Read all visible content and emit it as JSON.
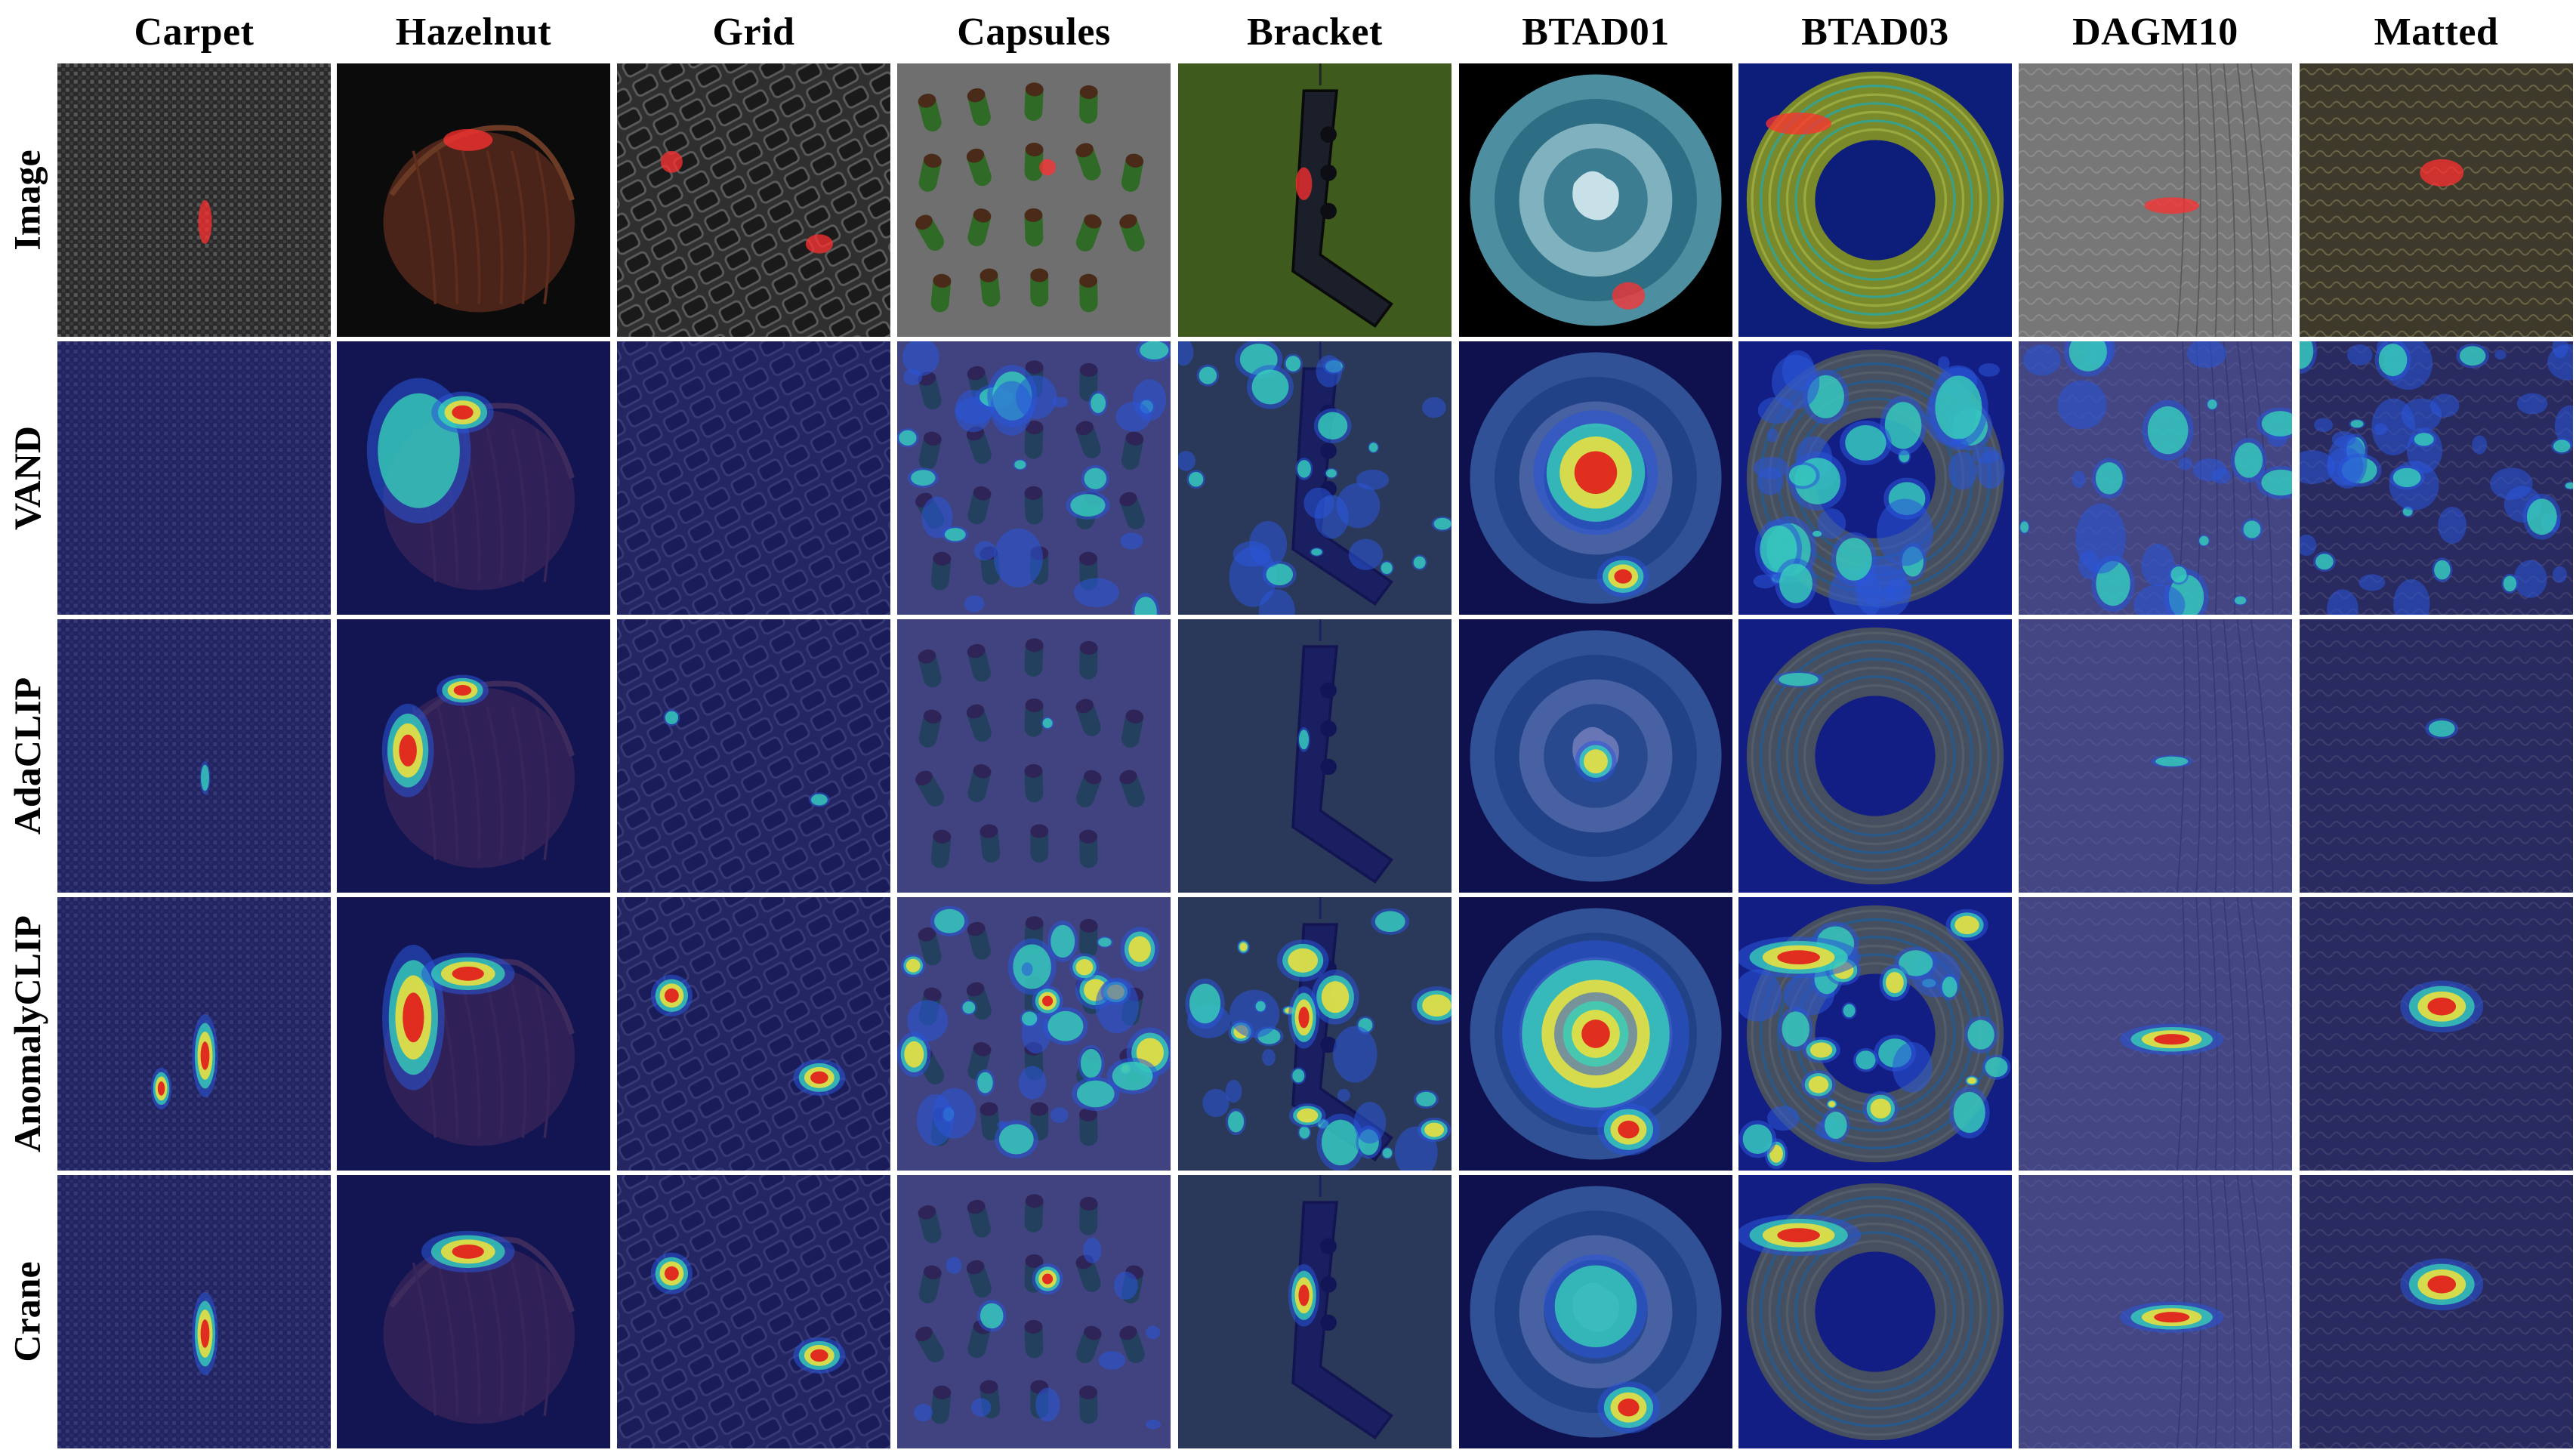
{
  "columns": [
    {
      "label": "Carpet",
      "kind": "carpet"
    },
    {
      "label": "Hazelnut",
      "kind": "hazelnut"
    },
    {
      "label": "Grid",
      "kind": "grid"
    },
    {
      "label": "Capsules",
      "kind": "capsules"
    },
    {
      "label": "Bracket",
      "kind": "bracket"
    },
    {
      "label": "BTAD01",
      "kind": "btad01"
    },
    {
      "label": "BTAD03",
      "kind": "btad03"
    },
    {
      "label": "DAGM10",
      "kind": "dagm10"
    },
    {
      "label": "Matted",
      "kind": "matted"
    }
  ],
  "rows": [
    {
      "label": "Image",
      "mode": "image"
    },
    {
      "label": "VAND",
      "mode": "vand"
    },
    {
      "label": "AdaCLIP",
      "mode": "adaclip"
    },
    {
      "label": "AnomalyCLIP",
      "mode": "anomalyclip"
    },
    {
      "label": "Crane",
      "mode": "crane"
    }
  ],
  "colors": {
    "heat_background": "#1a1f8c",
    "heat_low": "#2a55d8",
    "heat_mid": "#38d8b8",
    "heat_high": "#f2e23a",
    "heat_peak": "#e0241c",
    "ground_truth_mask": "#ff3030"
  }
}
